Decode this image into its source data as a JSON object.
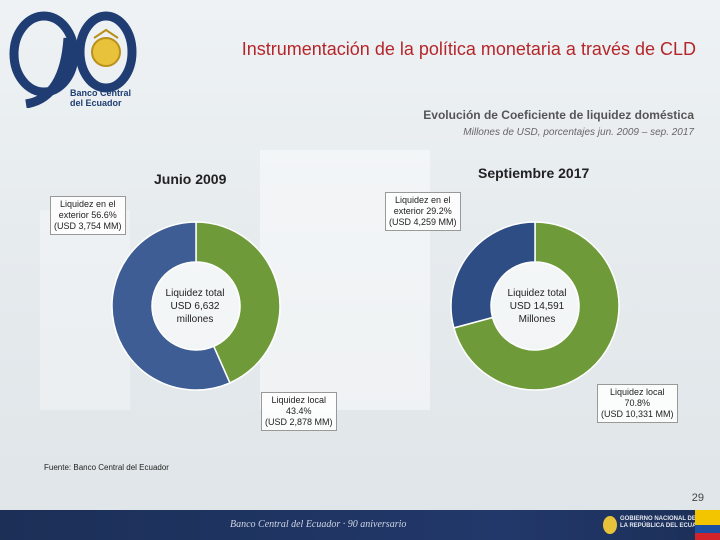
{
  "header": {
    "title": "Instrumentación de la política monetaria a través de CLD",
    "logo_text": [
      "Banco Central",
      "del Ecuador"
    ]
  },
  "chart_header": {
    "subtitle": "Evolución de Coeficiente  de liquidez doméstica",
    "units": "Millones de USD, porcentajes jun. 2009 – sep. 2017"
  },
  "chart_data": [
    {
      "type": "pie",
      "title": "Junio 2009",
      "center_label": [
        "Liquidez total",
        "USD 6,632",
        "millones"
      ],
      "slices": [
        {
          "label": "Liquidez local",
          "value": 43.4,
          "amount_label": "(USD 2,878 MM)",
          "color": "#6f9a3a"
        },
        {
          "label": "Liquidez en el exterior",
          "value": 56.6,
          "amount_label": "(USD 3,754 MM)",
          "color": "#3d5d94"
        }
      ],
      "callouts": {
        "exterior": [
          "Liquidez en el",
          "exterior 56.6%",
          "(USD 3,754 MM)"
        ],
        "local": [
          "Liquidez local",
          "43.4%",
          "(USD 2,878 MM)"
        ]
      }
    },
    {
      "type": "pie",
      "title": "Septiembre 2017",
      "center_label": [
        "Liquidez total",
        "USD 14,591",
        "Millones"
      ],
      "slices": [
        {
          "label": "Liquidez local",
          "value": 70.8,
          "amount_label": "(USD 10,331 MM)",
          "color": "#6f9a3a"
        },
        {
          "label": "Liquidez en el exterior",
          "value": 29.2,
          "amount_label": "(USD 4,259 MM)",
          "color": "#2e4d84"
        }
      ],
      "callouts": {
        "exterior": [
          "Liquidez en el",
          "exterior 29.2%",
          "(USD 4,259 MM)"
        ],
        "local": [
          "Liquidez local",
          "70.8%",
          "(USD 10,331 MM)"
        ]
      }
    }
  ],
  "footer": {
    "source": "Fuente: Banco Central del Ecuador",
    "page_number": "29",
    "banner_text": "Banco Central del Ecuador · 90 aniversario",
    "gov_text": [
      "GOBIERNO NACIONAL DE",
      "LA REPÚBLICA DEL ECUADOR"
    ]
  },
  "colors": {
    "title": "#b5262a",
    "local": "#6f9a3a",
    "exterior": "#3d5d94",
    "footer": "#1b2f57"
  }
}
